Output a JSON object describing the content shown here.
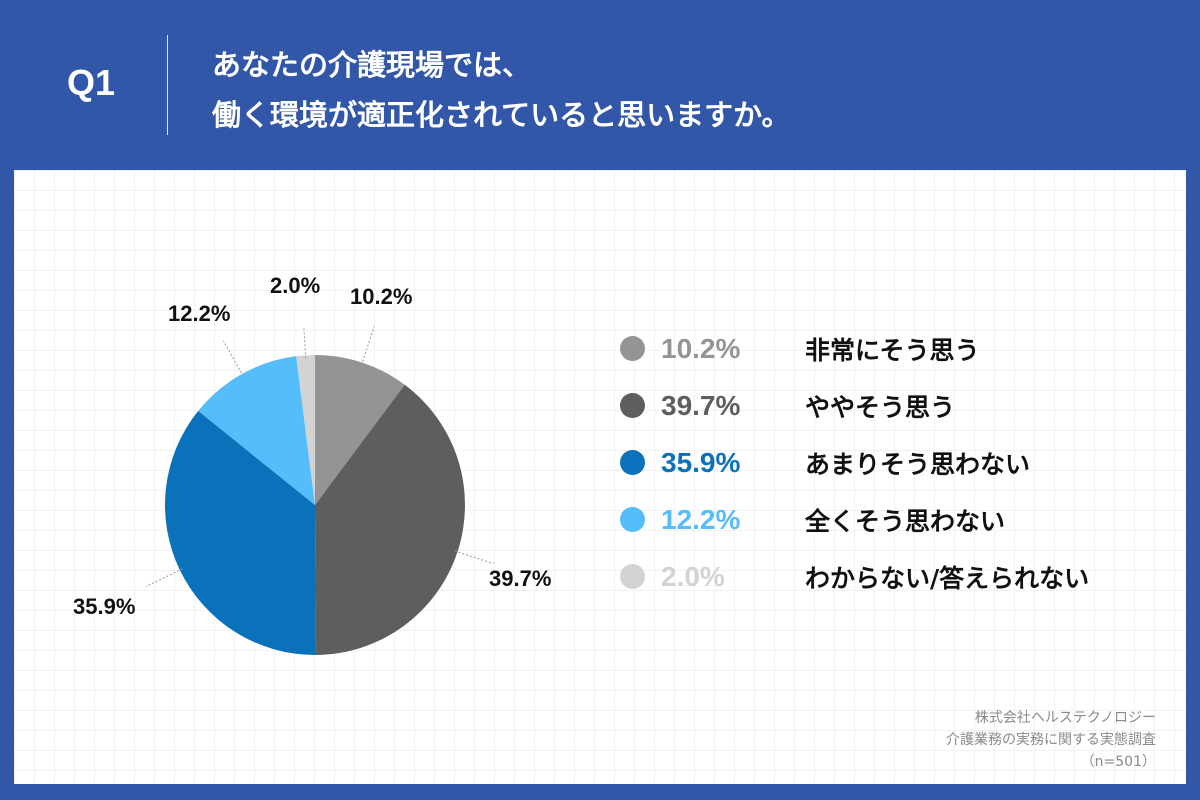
{
  "header": {
    "question_number": "Q1",
    "title_line1": "あなたの介護現場では、",
    "title_line2": "働く環境が適正化されていると思いますか。"
  },
  "colors": {
    "background": "#3256a8",
    "card": "#ffffff"
  },
  "chart_data": {
    "type": "pie",
    "title": "あなたの介護現場では、働く環境が適正化されていると思いますか。",
    "categories": [
      "非常にそう思う",
      "ややそう思う",
      "あまりそう思わない",
      "全くそう思わない",
      "わからない/答えられない"
    ],
    "values": [
      10.2,
      39.7,
      35.9,
      12.2,
      2.0
    ],
    "value_labels": [
      "10.2%",
      "39.7%",
      "35.9%",
      "12.2%",
      "2.0%"
    ],
    "colors": [
      "#949494",
      "#5e5e5e",
      "#0a72ba",
      "#56bdfb",
      "#d3d3d3"
    ],
    "start_angle": "12 o'clock, clockwise",
    "legend_position": "right",
    "unit": "%"
  },
  "legend": [
    {
      "pct": "10.2%",
      "label": "非常にそう思う",
      "color": "#949494"
    },
    {
      "pct": "39.7%",
      "label": "ややそう思う",
      "color": "#5e5e5e"
    },
    {
      "pct": "35.9%",
      "label": "あまりそう思わない",
      "color": "#0a72ba"
    },
    {
      "pct": "12.2%",
      "label": "全くそう思わない",
      "color": "#56bdfb"
    },
    {
      "pct": "2.0%",
      "label": "わからない/答えられない",
      "color": "#d3d3d3"
    }
  ],
  "pie_labels": {
    "s1": "10.2%",
    "s2": "39.7%",
    "s3": "35.9%",
    "s4": "12.2%",
    "s5": "2.0%"
  },
  "source": {
    "line1": "株式会社ヘルステクノロジー",
    "line2": "介護業務の実務に関する実態調査",
    "line3": "（n=501）"
  }
}
